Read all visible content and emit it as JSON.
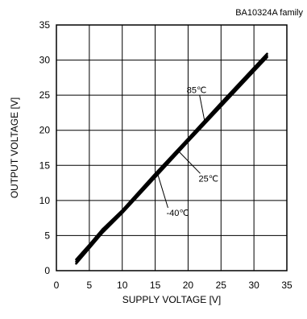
{
  "chart_data": {
    "type": "line",
    "family_label": "BA10324A  family",
    "xlabel": "SUPPLY VOLTAGE [V]",
    "ylabel": "OUTPUT VOLTAGE [V]",
    "xlim": [
      0,
      35
    ],
    "ylim": [
      0,
      35
    ],
    "xticks": [
      0,
      5,
      10,
      15,
      20,
      25,
      30,
      35
    ],
    "yticks": [
      0,
      5,
      10,
      15,
      20,
      25,
      30,
      35
    ],
    "grid": true,
    "series": [
      {
        "name": "85℃",
        "x": [
          3,
          5,
          7,
          10,
          15,
          20,
          25,
          30,
          32
        ],
        "y": [
          1.6,
          3.7,
          5.9,
          8.6,
          13.8,
          18.8,
          23.9,
          28.9,
          30.9
        ]
      },
      {
        "name": "25℃",
        "x": [
          3,
          5,
          7,
          10,
          15,
          20,
          25,
          30,
          32
        ],
        "y": [
          1.3,
          3.4,
          5.6,
          8.4,
          13.5,
          18.6,
          23.6,
          28.6,
          30.6
        ]
      },
      {
        "name": "-40℃",
        "x": [
          3,
          5,
          7,
          10,
          15,
          20,
          25,
          30,
          32
        ],
        "y": [
          1.0,
          3.2,
          5.4,
          8.2,
          13.3,
          18.4,
          23.4,
          28.4,
          30.4
        ]
      }
    ],
    "annotations": [
      {
        "text": "85℃",
        "series": 0,
        "at_x": 22.5,
        "label_x": 19.8,
        "label_y": 25.3
      },
      {
        "text": "25℃",
        "series": 1,
        "at_x": 18.5,
        "label_x": 21.6,
        "label_y": 12.7
      },
      {
        "text": "-40℃",
        "series": 2,
        "at_x": 15.4,
        "label_x": 16.7,
        "label_y": 7.8
      }
    ]
  }
}
